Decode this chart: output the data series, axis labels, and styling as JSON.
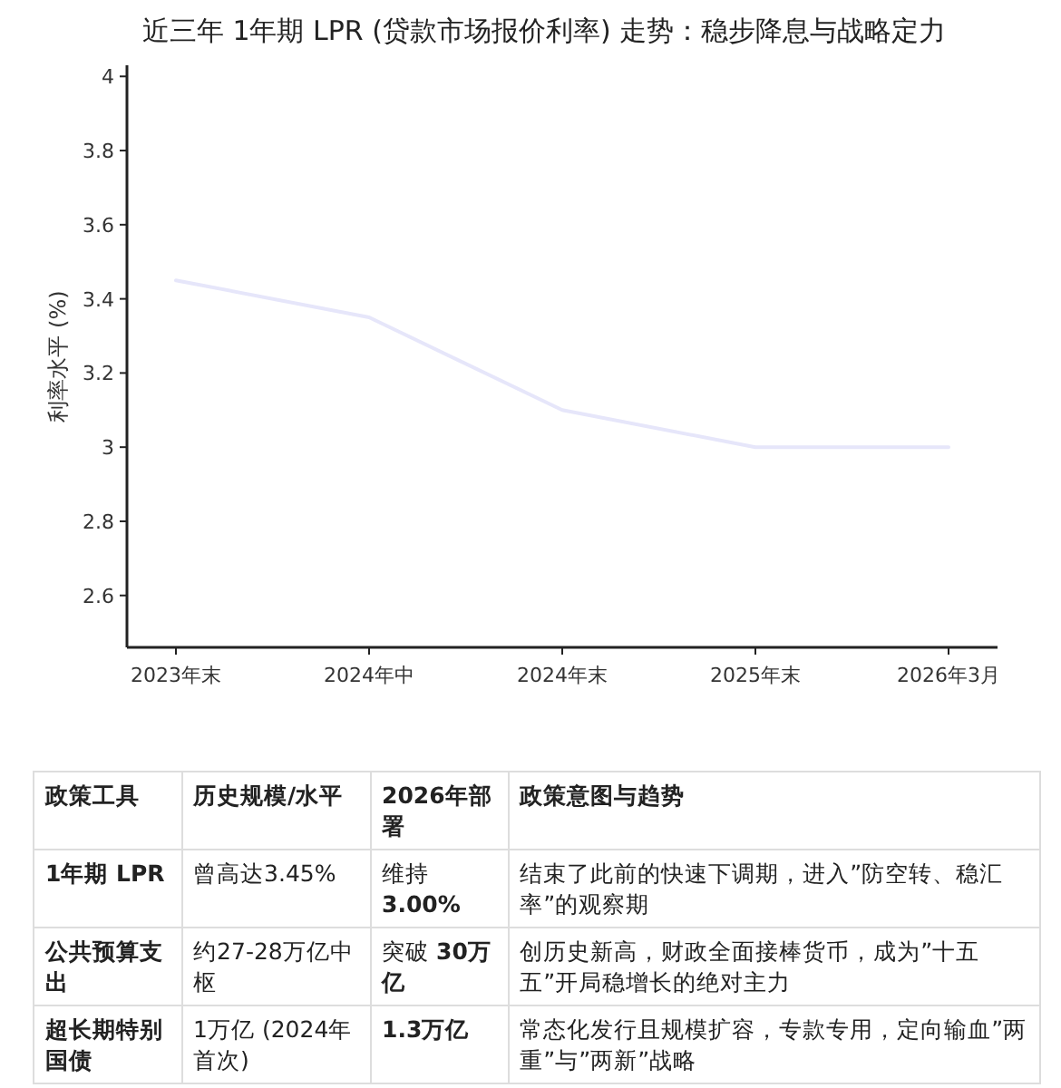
{
  "chart_data": [
    {
      "type": "line",
      "title": "近三年 1年期 LPR (贷款市场报价利率) 走势：稳步降息与战略定力",
      "ylabel": "利率水平 (%)",
      "categories": [
        "2023年末",
        "2024年中",
        "2024年末",
        "2025年末",
        "2026年3月"
      ],
      "series": [
        {
          "color": "#e6e6fa",
          "values": [
            3.45,
            3.35,
            3.1,
            3.0,
            3.0
          ]
        }
      ],
      "ylim": [
        2.46,
        4.03
      ],
      "yticks": [
        2.6,
        2.8,
        3,
        3.2,
        3.4,
        3.6,
        3.8,
        4
      ],
      "marker": "none",
      "line_style": "solid"
    },
    {
      "type": "other",
      "categories": [
        "政策工具",
        "历史规模/水平",
        "2026年部署",
        "政策意图与趋势"
      ],
      "annotations": [
        "1年期 LPR",
        "曾高达3.45%",
        "维持 **3.00%**",
        "结束了此前的快速下调期，进入”防空转、稳汇率”的观察期",
        "公共预算支出",
        "约27-28万亿中枢",
        "突破 **30万亿**",
        "创历史新高，财政全面接棒货币，成为”十五五”开局稳增长的绝对主力",
        "超长期特别国债",
        "1万亿 (2024年首次)",
        "**1.3万亿**",
        "常态化发行且规模扩容，专款专用，定向输血”两重”与”两新”战略"
      ]
    }
  ]
}
